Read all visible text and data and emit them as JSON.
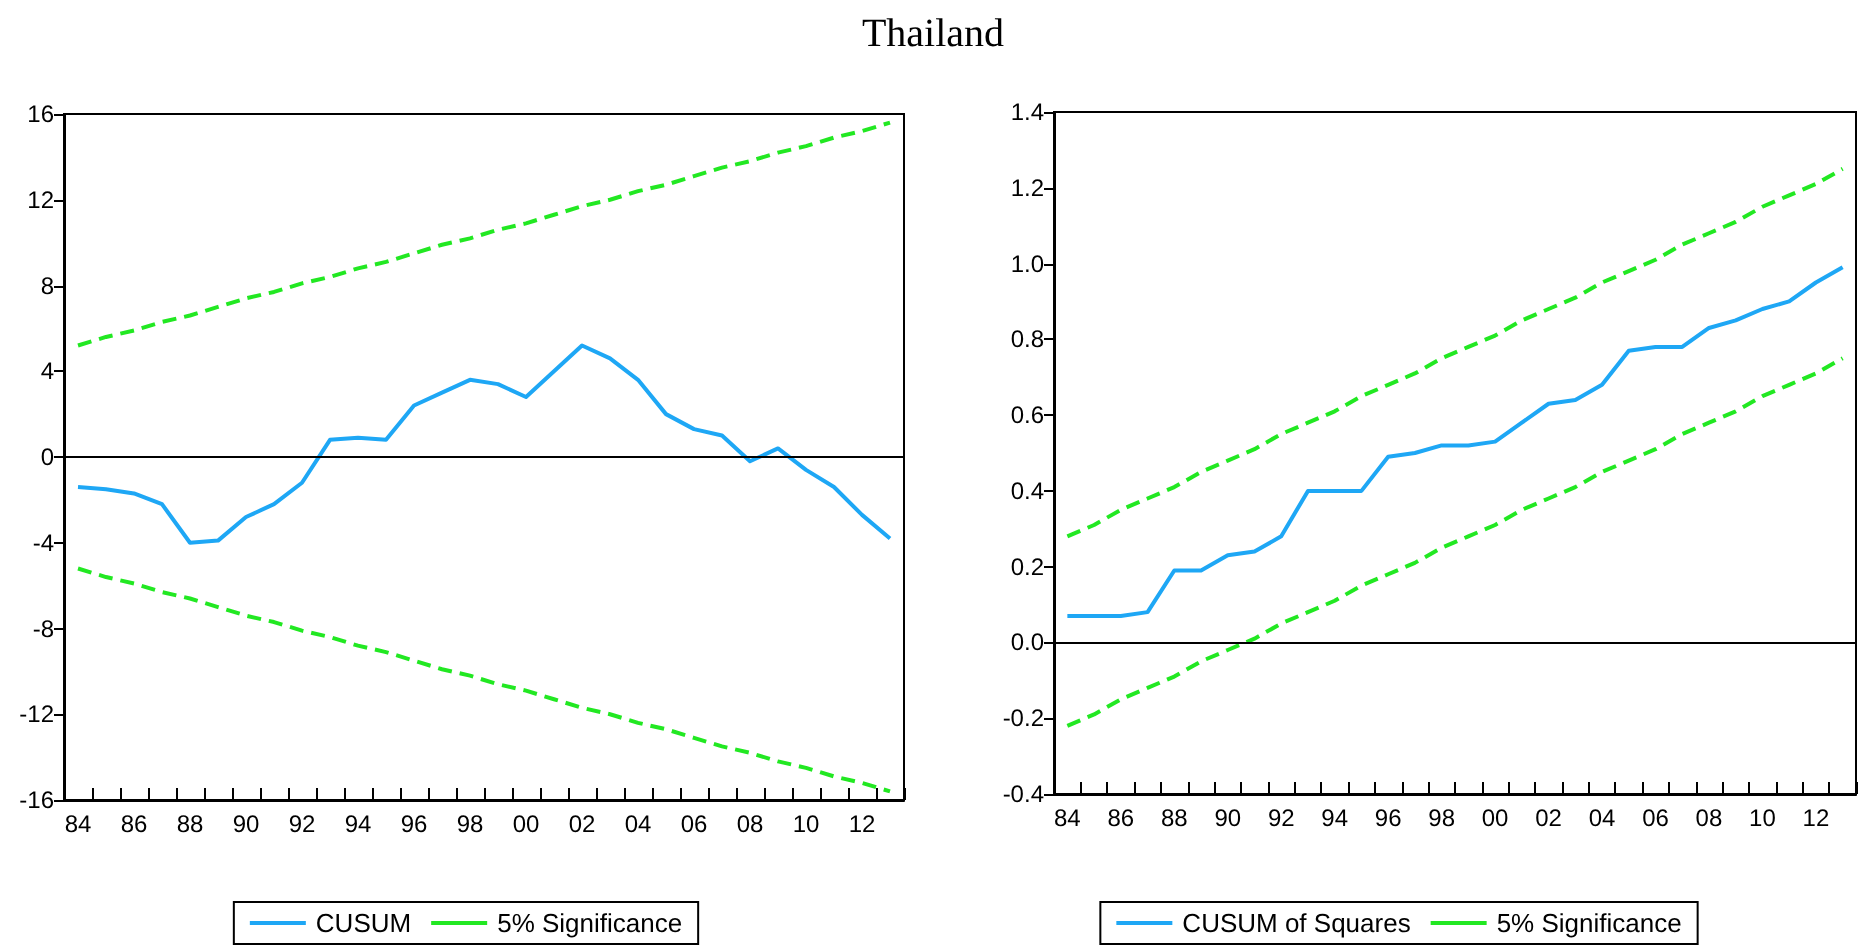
{
  "chart_data": [
    {
      "type": "line",
      "title": "Thailand",
      "categories": [
        "84",
        null,
        "86",
        null,
        "88",
        null,
        "90",
        null,
        "92",
        null,
        "94",
        null,
        "96",
        null,
        "98",
        null,
        "00",
        null,
        "02",
        null,
        "04",
        null,
        "06",
        null,
        "08",
        null,
        "10",
        null,
        "12",
        null
      ],
      "series": [
        {
          "name": "CUSUM",
          "color": "#1ea7f5",
          "line_style": "solid",
          "values": [
            -1.4,
            -1.5,
            -1.7,
            -2.2,
            -4.0,
            -3.9,
            -2.8,
            -2.2,
            -1.2,
            0.8,
            0.9,
            0.8,
            2.4,
            3.0,
            3.6,
            3.4,
            2.8,
            4.0,
            5.2,
            4.6,
            3.6,
            2.0,
            1.3,
            1.0,
            -0.2,
            0.4,
            -0.6,
            -1.4,
            -2.7,
            -3.8
          ]
        },
        {
          "name": "5% Significance",
          "color": "#22e822",
          "line_style": "dashed",
          "values": [
            5.2,
            5.6,
            5.9,
            6.3,
            6.6,
            7.0,
            7.4,
            7.7,
            8.1,
            8.4,
            8.8,
            9.1,
            9.5,
            9.9,
            10.2,
            10.6,
            10.9,
            11.3,
            11.7,
            12.0,
            12.4,
            12.7,
            13.1,
            13.5,
            13.8,
            14.2,
            14.5,
            14.9,
            15.2,
            15.6
          ]
        },
        {
          "color": "#22e822",
          "line_style": "dashed",
          "values": [
            -5.2,
            -5.6,
            -5.9,
            -6.3,
            -6.6,
            -7.0,
            -7.4,
            -7.7,
            -8.1,
            -8.4,
            -8.8,
            -9.1,
            -9.5,
            -9.9,
            -10.2,
            -10.6,
            -10.9,
            -11.3,
            -11.7,
            -12.0,
            -12.4,
            -12.7,
            -13.1,
            -13.5,
            -13.8,
            -14.2,
            -14.5,
            -14.9,
            -15.2,
            -15.6
          ]
        }
      ],
      "ylim": [
        -16,
        16
      ],
      "yticks": [
        -16,
        -12,
        -8,
        -4,
        0,
        4,
        8,
        12,
        16
      ],
      "ref_lines": [
        {
          "axis": "y",
          "value": 0,
          "color": "#000000"
        }
      ],
      "legend": "bottom",
      "grid": false,
      "marker": "none"
    },
    {
      "type": "line",
      "categories": [
        "84",
        null,
        "86",
        null,
        "88",
        null,
        "90",
        null,
        "92",
        null,
        "94",
        null,
        "96",
        null,
        "98",
        null,
        "00",
        null,
        "02",
        null,
        "04",
        null,
        "06",
        null,
        "08",
        null,
        "10",
        null,
        "12",
        null
      ],
      "series": [
        {
          "name": "CUSUM of Squares",
          "color": "#1ea7f5",
          "line_style": "solid",
          "values": [
            0.07,
            0.07,
            0.07,
            0.08,
            0.19,
            0.19,
            0.23,
            0.24,
            0.28,
            0.4,
            0.4,
            0.4,
            0.49,
            0.5,
            0.52,
            0.52,
            0.53,
            0.58,
            0.63,
            0.64,
            0.68,
            0.77,
            0.78,
            0.78,
            0.83,
            0.85,
            0.88,
            0.9,
            0.95,
            0.99
          ]
        },
        {
          "name": "5% Significance",
          "color": "#22e822",
          "line_style": "dashed",
          "values": [
            0.28,
            0.31,
            0.35,
            0.38,
            0.41,
            0.45,
            0.48,
            0.51,
            0.55,
            0.58,
            0.61,
            0.65,
            0.68,
            0.71,
            0.75,
            0.78,
            0.81,
            0.85,
            0.88,
            0.91,
            0.95,
            0.98,
            1.01,
            1.05,
            1.08,
            1.11,
            1.15,
            1.18,
            1.21,
            1.25
          ]
        },
        {
          "color": "#22e822",
          "line_style": "dashed",
          "values": [
            -0.22,
            -0.19,
            -0.15,
            -0.12,
            -0.09,
            -0.05,
            -0.02,
            0.01,
            0.05,
            0.08,
            0.11,
            0.15,
            0.18,
            0.21,
            0.25,
            0.28,
            0.31,
            0.35,
            0.38,
            0.41,
            0.45,
            0.48,
            0.51,
            0.55,
            0.58,
            0.61,
            0.65,
            0.68,
            0.71,
            0.75
          ]
        }
      ],
      "ylim": [
        -0.4,
        1.4
      ],
      "yticks": [
        -0.4,
        -0.2,
        {
          "value": 0,
          "label": "0.0"
        },
        0.2,
        0.4,
        0.6,
        0.8,
        {
          "value": 1,
          "label": "1.0"
        },
        1.2,
        1.4
      ],
      "ref_lines": [
        {
          "axis": "y",
          "value": 0,
          "color": "#000000"
        }
      ],
      "legend": "bottom",
      "grid": false,
      "marker": "none"
    }
  ]
}
